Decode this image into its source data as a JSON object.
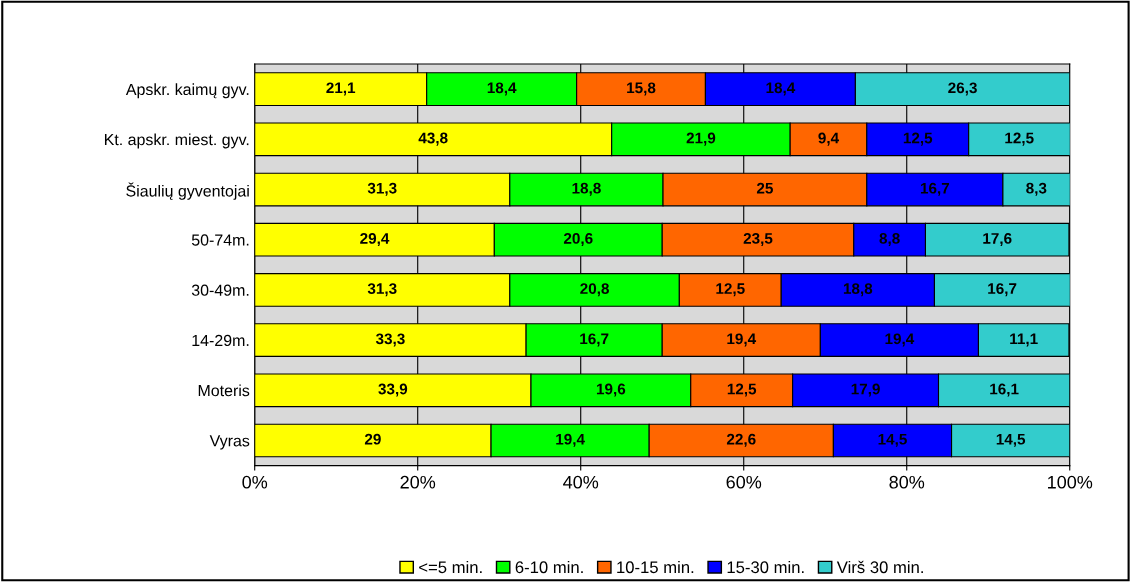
{
  "chart_data": {
    "type": "bar",
    "orientation": "horizontal",
    "stacked": true,
    "categories": [
      "Apskr. kaimų gyv.",
      "Kt. apskr. miest. gyv.",
      "Šiaulių gyventojai",
      "50-74m.",
      "30-49m.",
      "14-29m.",
      "Moteris",
      "Vyras"
    ],
    "series": [
      {
        "name": "<=5 min.",
        "color": "#ffff00",
        "values": [
          21.1,
          43.8,
          31.3,
          29.4,
          31.3,
          33.3,
          33.9,
          29
        ],
        "value_labels": [
          "21,1",
          "43,8",
          "31,3",
          "29,4",
          "31,3",
          "33,3",
          "33,9",
          "29"
        ]
      },
      {
        "name": "6-10 min.",
        "color": "#00ff00",
        "values": [
          18.4,
          21.9,
          18.8,
          20.6,
          20.8,
          16.7,
          19.6,
          19.4
        ],
        "value_labels": [
          "18,4",
          "21,9",
          "18,8",
          "20,6",
          "20,8",
          "16,7",
          "19,6",
          "19,4"
        ]
      },
      {
        "name": "10-15 min.",
        "color": "#ff6600",
        "values": [
          15.8,
          9.4,
          25,
          23.5,
          12.5,
          19.4,
          12.5,
          22.6
        ],
        "value_labels": [
          "15,8",
          "9,4",
          "25",
          "23,5",
          "12,5",
          "19,4",
          "12,5",
          "22,6"
        ]
      },
      {
        "name": "15-30 min.",
        "color": "#0000ff",
        "values": [
          18.4,
          12.5,
          16.7,
          8.8,
          18.8,
          19.4,
          17.9,
          14.5
        ],
        "value_labels": [
          "18,4",
          "12,5",
          "16,7",
          "8,8",
          "18,8",
          "19,4",
          "17,9",
          "14,5"
        ]
      },
      {
        "name": "Virš 30 min.",
        "color": "#33cccc",
        "values": [
          26.3,
          12.5,
          8.3,
          17.6,
          16.7,
          11.1,
          16.1,
          14.5
        ],
        "value_labels": [
          "26,3",
          "12,5",
          "8,3",
          "17,6",
          "16,7",
          "11,1",
          "16,1",
          "14,5"
        ]
      }
    ],
    "xlim": [
      0,
      100
    ],
    "xticks": [
      {
        "value": 0,
        "label": "0%"
      },
      {
        "value": 20,
        "label": "20%"
      },
      {
        "value": 40,
        "label": "40%"
      },
      {
        "value": 60,
        "label": "60%"
      },
      {
        "value": 80,
        "label": "80%"
      },
      {
        "value": 100,
        "label": "100%"
      }
    ],
    "grid": "x",
    "legend": "bottom"
  }
}
